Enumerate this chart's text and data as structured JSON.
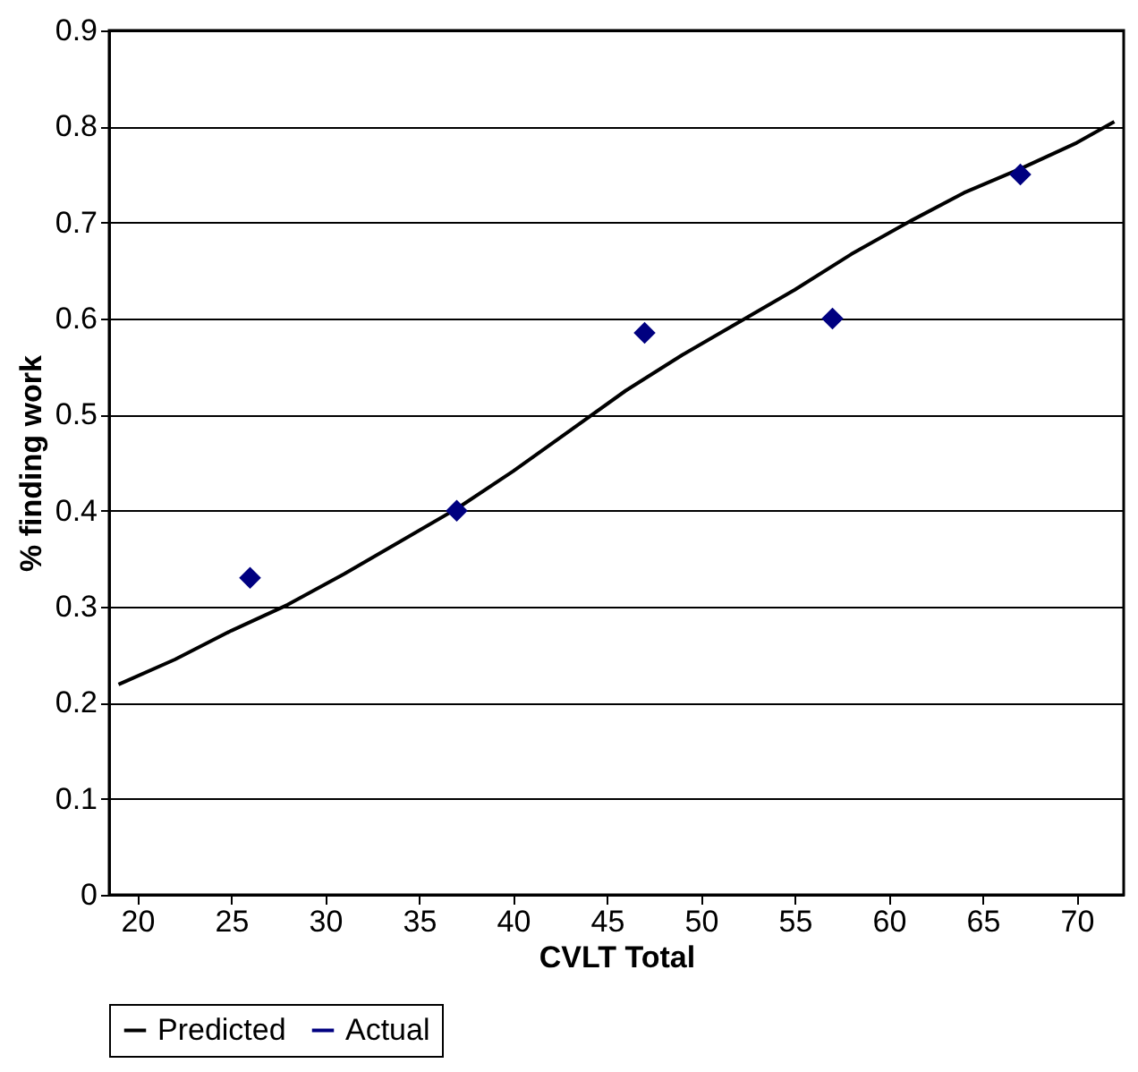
{
  "chart_data": {
    "type": "line",
    "xlabel": "CVLT Total",
    "ylabel": "% finding work",
    "xlim": [
      18.5,
      72.5
    ],
    "xticks": [
      20,
      25,
      30,
      35,
      40,
      45,
      50,
      55,
      60,
      65,
      70
    ],
    "ylim": [
      0,
      0.9
    ],
    "yticks": [
      0,
      0.1,
      0.2,
      0.3,
      0.4,
      0.5,
      0.6,
      0.7,
      0.8,
      0.9
    ],
    "grid": "y",
    "legend": "bottom",
    "series": [
      {
        "name": "Predicted",
        "color": "#000000",
        "marker": "none",
        "line_style": "solid",
        "x": [
          19,
          22,
          25,
          28,
          31,
          34,
          37,
          40,
          43,
          46,
          49,
          52,
          55,
          58,
          61,
          64,
          67,
          70,
          72
        ],
        "values": [
          0.219,
          0.245,
          0.275,
          0.302,
          0.334,
          0.368,
          0.402,
          0.441,
          0.483,
          0.525,
          0.562,
          0.596,
          0.63,
          0.667,
          0.7,
          0.731,
          0.756,
          0.783,
          0.805
        ]
      },
      {
        "name": "Actual",
        "type": "scatter",
        "color": "#000080",
        "marker": "diamond",
        "x": [
          26,
          37,
          47,
          57,
          67
        ],
        "values": [
          0.33,
          0.4,
          0.585,
          0.6,
          0.75
        ]
      }
    ]
  }
}
